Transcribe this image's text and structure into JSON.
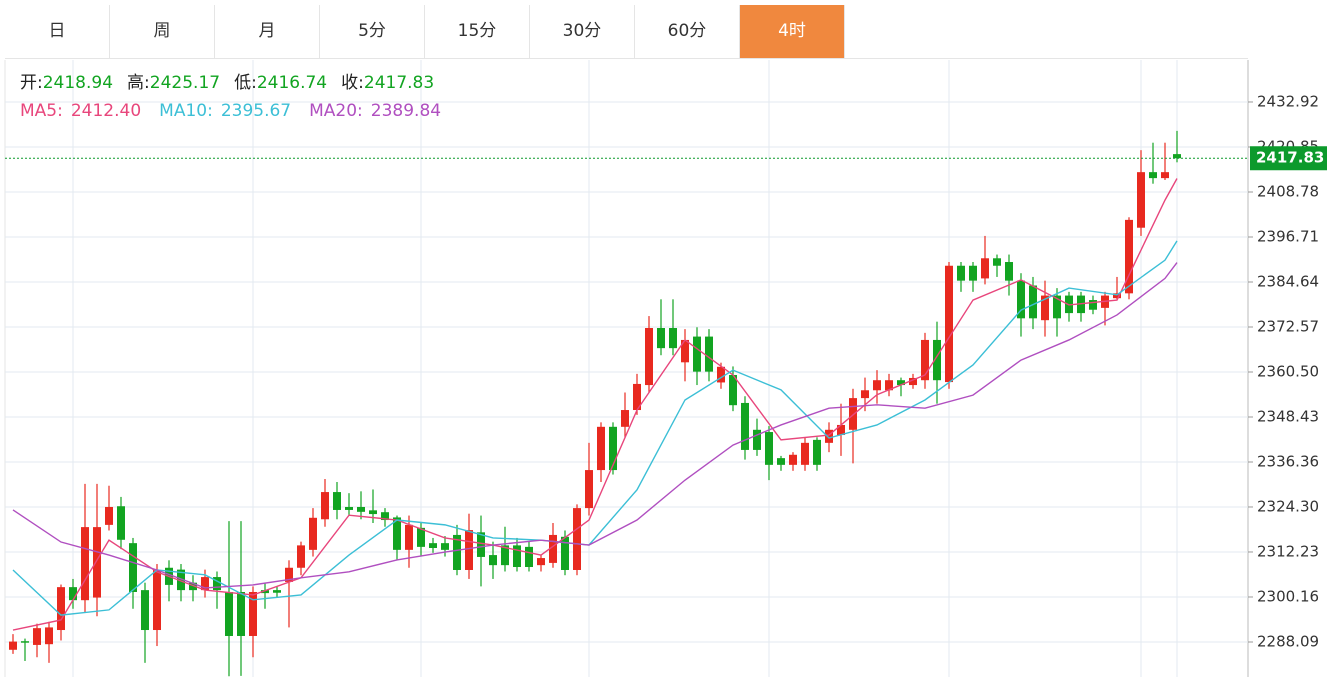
{
  "chart_data": {
    "type": "candlestick",
    "tabs": [
      "日",
      "周",
      "月",
      "5分",
      "15分",
      "30分",
      "60分",
      "4时"
    ],
    "active_tab": 7,
    "header": [
      {
        "label": "开:",
        "value": "2418.94"
      },
      {
        "label": "高:",
        "value": "2425.17"
      },
      {
        "label": "低:",
        "value": "2416.74"
      },
      {
        "label": "收:",
        "value": "2417.83"
      }
    ],
    "up_color": "#e8291f",
    "down_color": "#12a421",
    "open": [
      2286.0,
      2288.3,
      2287.3,
      2287.5,
      2291.3,
      2302.8,
      2299.3,
      2300.0,
      2319.5,
      2324.5,
      2314.6,
      2302.0,
      2291.3,
      2308.0,
      2307.5,
      2304.0,
      2302.0,
      2305.5,
      2301.5,
      2301.5,
      2289.7,
      2302.0,
      2302.0,
      2304.2,
      2308.0,
      2312.8,
      2321.0,
      2328.3,
      2324.3,
      2324.3,
      2323.4,
      2322.9,
      2321.5,
      2312.8,
      2318.7,
      2314.6,
      2314.6,
      2316.8,
      2307.4,
      2317.5,
      2311.4,
      2314.0,
      2314.0,
      2313.6,
      2308.7,
      2309.3,
      2316.3,
      2307.4,
      2324.0,
      2334.2,
      2345.8,
      2345.8,
      2350.3,
      2357.0,
      2372.3,
      2372.3,
      2363.1,
      2370.0,
      2370.0,
      2357.7,
      2359.7,
      2352.2,
      2345.0,
      2344.4,
      2337.4,
      2335.6,
      2335.6,
      2342.3,
      2341.5,
      2343.6,
      2345.0,
      2353.5,
      2355.6,
      2355.6,
      2358.3,
      2357.0,
      2358.3,
      2369.1,
      2357.8,
      2389.0,
      2389.0,
      2385.6,
      2391.0,
      2390.0,
      2385.0,
      2383.7,
      2374.4,
      2381.0,
      2381.0,
      2381.0,
      2379.8,
      2377.7,
      2380.3,
      2381.6,
      2399.2,
      2414.1,
      2412.5,
      2418.94
    ],
    "high": [
      2290.2,
      2289.0,
      2293.0,
      2293.5,
      2303.5,
      2305.0,
      2330.5,
      2330.5,
      2330.0,
      2327.0,
      2316.0,
      2304.0,
      2309.0,
      2310.0,
      2309.0,
      2306.0,
      2307.5,
      2307.0,
      2320.5,
      2320.5,
      2303.0,
      2304.0,
      2303.0,
      2310.0,
      2315.0,
      2324.0,
      2331.8,
      2331.0,
      2328.0,
      2328.5,
      2329.0,
      2324.0,
      2322.0,
      2322.0,
      2320.0,
      2316.0,
      2316.5,
      2319.5,
      2322.5,
      2322.0,
      2315.0,
      2319.0,
      2316.0,
      2315.0,
      2311.5,
      2320.0,
      2318.0,
      2325.0,
      2341.5,
      2347.0,
      2347.0,
      2355.0,
      2360.0,
      2375.5,
      2380.0,
      2380.0,
      2372.0,
      2372.5,
      2372.0,
      2363.0,
      2362.0,
      2354.0,
      2348.0,
      2346.0,
      2338.0,
      2339.0,
      2343.0,
      2343.0,
      2347.0,
      2352.0,
      2356.0,
      2359.0,
      2361.0,
      2360.0,
      2359.0,
      2360.0,
      2371.0,
      2374.0,
      2390.0,
      2390.0,
      2390.0,
      2397.0,
      2392.0,
      2392.0,
      2387.0,
      2386.0,
      2385.0,
      2383.0,
      2382.0,
      2382.0,
      2381.0,
      2382.0,
      2386.0,
      2402.0,
      2420.0,
      2422.0,
      2422.0,
      2425.17
    ],
    "low": [
      2284.9,
      2283.0,
      2284.0,
      2282.5,
      2288.5,
      2297.0,
      2296.0,
      2295.0,
      2318.0,
      2313.0,
      2297.0,
      2282.5,
      2287.0,
      2299.0,
      2299.0,
      2299.0,
      2300.0,
      2297.0,
      2278.9,
      2279.0,
      2284.0,
      2297.0,
      2300.0,
      2292.0,
      2306.0,
      2311.0,
      2319.0,
      2321.0,
      2322.0,
      2321.0,
      2320.0,
      2319.0,
      2310.0,
      2308.0,
      2311.0,
      2312.0,
      2311.0,
      2306.0,
      2305.0,
      2303.0,
      2305.0,
      2307.0,
      2307.0,
      2307.0,
      2307.0,
      2308.0,
      2306.0,
      2306.0,
      2322.0,
      2331.0,
      2333.0,
      2343.0,
      2349.0,
      2355.0,
      2365.0,
      2365.0,
      2358.0,
      2357.0,
      2358.0,
      2356.0,
      2350.0,
      2337.0,
      2338.0,
      2331.5,
      2334.0,
      2334.0,
      2334.0,
      2334.0,
      2339.0,
      2338.0,
      2336.0,
      2350.0,
      2352.0,
      2354.0,
      2354.0,
      2356.0,
      2356.0,
      2352.0,
      2356.0,
      2382.0,
      2382.0,
      2384.0,
      2386.0,
      2381.0,
      2370.0,
      2372.0,
      2370.0,
      2370.0,
      2374.0,
      2374.0,
      2376.0,
      2373.0,
      2380.0,
      2380.0,
      2397.0,
      2411.0,
      2412.0,
      2416.74
    ],
    "close": [
      2288.2,
      2287.9,
      2291.8,
      2292.0,
      2302.8,
      2299.3,
      2318.9,
      2318.9,
      2324.3,
      2315.5,
      2301.5,
      2291.3,
      2307.4,
      2303.4,
      2302.0,
      2302.0,
      2305.5,
      2302.0,
      2289.7,
      2289.7,
      2301.5,
      2301.2,
      2301.3,
      2308.0,
      2314.0,
      2321.4,
      2328.3,
      2323.5,
      2323.5,
      2323.0,
      2322.4,
      2320.8,
      2312.8,
      2319.5,
      2313.6,
      2313.3,
      2312.8,
      2307.4,
      2318.1,
      2310.9,
      2308.7,
      2308.7,
      2308.2,
      2308.2,
      2310.6,
      2316.8,
      2307.4,
      2324.0,
      2334.2,
      2345.8,
      2334.2,
      2350.3,
      2357.3,
      2372.3,
      2366.9,
      2366.9,
      2369.1,
      2360.6,
      2360.6,
      2361.9,
      2351.6,
      2339.6,
      2339.6,
      2335.6,
      2335.6,
      2338.3,
      2341.5,
      2335.6,
      2345.0,
      2346.3,
      2353.5,
      2355.6,
      2358.3,
      2358.3,
      2357.0,
      2358.9,
      2369.1,
      2358.3,
      2389.0,
      2385.0,
      2385.0,
      2391.0,
      2389.0,
      2385.0,
      2374.9,
      2374.9,
      2381.0,
      2374.9,
      2376.3,
      2376.3,
      2377.2,
      2381.0,
      2381.6,
      2401.3,
      2414.1,
      2412.5,
      2414.1,
      2417.83
    ],
    "series": [
      {
        "name": "MA5:",
        "current": "2412.40",
        "color": "#e8467c",
        "x": [
          0,
          4,
          8,
          12,
          16,
          20,
          24,
          28,
          32,
          36,
          40,
          44,
          48,
          52,
          56,
          60,
          64,
          68,
          72,
          76,
          80,
          84,
          88,
          92,
          96,
          97
        ],
        "values": [
          2291.3,
          2294.0,
          2315.4,
          2306.9,
          2302.0,
          2300.7,
          2305.3,
          2322.1,
          2320.8,
          2316.0,
          2314.1,
          2311.4,
          2320.8,
          2350.3,
          2369.1,
          2359.7,
          2342.3,
          2343.6,
          2354.4,
          2359.7,
          2379.8,
          2385.2,
          2378.5,
          2379.8,
          2406.6,
          2412.4
        ]
      },
      {
        "name": "MA10:",
        "current": "2395.67",
        "color": "#3cbfd6",
        "x": [
          0,
          4,
          8,
          12,
          16,
          20,
          24,
          28,
          32,
          36,
          40,
          44,
          48,
          52,
          56,
          60,
          64,
          68,
          72,
          76,
          80,
          84,
          88,
          92,
          96,
          97
        ],
        "values": [
          2307.4,
          2295.3,
          2296.7,
          2307.4,
          2306.1,
          2299.4,
          2300.7,
          2311.4,
          2320.8,
          2319.5,
          2316.0,
          2315.4,
          2314.1,
          2328.9,
          2353.0,
          2361.0,
          2355.7,
          2342.8,
          2346.3,
          2353.0,
          2362.4,
          2377.1,
          2383.0,
          2381.2,
          2390.5,
          2395.67
        ]
      },
      {
        "name": "MA20:",
        "current": "2389.84",
        "color": "#b04fc0",
        "x": [
          0,
          4,
          8,
          12,
          16,
          20,
          24,
          28,
          32,
          36,
          40,
          44,
          48,
          52,
          56,
          60,
          64,
          68,
          72,
          76,
          80,
          84,
          88,
          92,
          96,
          97
        ],
        "values": [
          2323.5,
          2314.9,
          2311.4,
          2307.4,
          2302.6,
          2303.4,
          2305.3,
          2306.9,
          2310.1,
          2312.2,
          2314.1,
          2315.4,
          2314.1,
          2320.8,
          2331.5,
          2340.9,
          2346.3,
          2350.8,
          2351.7,
          2350.8,
          2354.3,
          2363.7,
          2369.1,
          2375.8,
          2385.6,
          2389.84
        ]
      }
    ],
    "last_price": 2417.83,
    "last_price_color": "#0c9a2c",
    "xgrid": [
      5,
      20,
      34,
      48,
      63,
      78,
      94,
      97
    ],
    "ylim": [
      2278.7,
      2444.18
    ],
    "yticks": [
      2432.92,
      2420.85,
      2408.78,
      2396.71,
      2384.64,
      2372.57,
      {
        "value": 2360.5,
        "label": "2360.50"
      },
      2348.43,
      2336.36,
      {
        "value": 2324.3,
        "label": "2324.30"
      },
      2312.23,
      2300.16,
      2288.09
    ],
    "grid": true
  }
}
